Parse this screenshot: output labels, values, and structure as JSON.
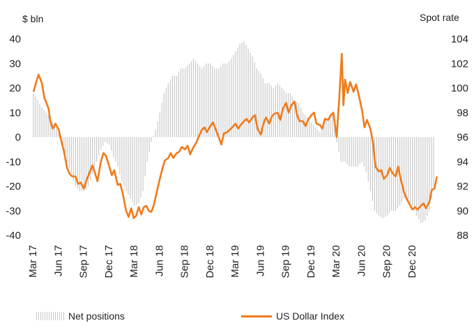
{
  "chart_data": {
    "type": "bar+line",
    "left_axis_label": "$ bln",
    "right_axis_label": "Spot rate",
    "left_ylim": [
      -40,
      40
    ],
    "right_ylim": [
      88,
      104
    ],
    "left_ticks": [
      "40",
      "30",
      "20",
      "10",
      "0",
      "-10",
      "-20",
      "-30",
      "-40"
    ],
    "right_ticks": [
      "104",
      "102",
      "100",
      "98",
      "96",
      "94",
      "92",
      "90",
      "88"
    ],
    "x_start": "2017-03",
    "x_end": "2021-02",
    "x_ticks": [
      {
        "label": "Mar 17",
        "t": 0
      },
      {
        "label": "Jun 17",
        "t": 3
      },
      {
        "label": "Sep 17",
        "t": 6
      },
      {
        "label": "Dec 17",
        "t": 9
      },
      {
        "label": "Mar 18",
        "t": 12
      },
      {
        "label": "Jun 18",
        "t": 15
      },
      {
        "label": "Sep 18",
        "t": 18
      },
      {
        "label": "Dec 18",
        "t": 21
      },
      {
        "label": "Mar 19",
        "t": 24
      },
      {
        "label": "Jun 19",
        "t": 27
      },
      {
        "label": "Sep 19",
        "t": 30
      },
      {
        "label": "Dec 19",
        "t": 33
      },
      {
        "label": "Mar 20",
        "t": 36
      },
      {
        "label": "Jun 20",
        "t": 39
      },
      {
        "label": "Sep 20",
        "t": 42
      },
      {
        "label": "Dec 20",
        "t": 45
      }
    ],
    "series": [
      {
        "name": "Net positions",
        "axis": "left",
        "kind": "bar",
        "color": "#c8c8c8",
        "points": [
          [
            0,
            18
          ],
          [
            0.5,
            15
          ],
          [
            1,
            12
          ],
          [
            1.5,
            10
          ],
          [
            2,
            8
          ],
          [
            2.5,
            5
          ],
          [
            3,
            2
          ],
          [
            3.5,
            -5
          ],
          [
            4,
            -10
          ],
          [
            4.5,
            -15
          ],
          [
            5,
            -20
          ],
          [
            5.5,
            -22
          ],
          [
            6,
            -22
          ],
          [
            6.5,
            -20
          ],
          [
            7,
            -15
          ],
          [
            7.5,
            -10
          ],
          [
            8,
            -5
          ],
          [
            8.5,
            -2
          ],
          [
            9,
            -3
          ],
          [
            9.5,
            -8
          ],
          [
            10,
            -12
          ],
          [
            10.5,
            -18
          ],
          [
            11,
            -22
          ],
          [
            11.5,
            -25
          ],
          [
            12,
            -28
          ],
          [
            12.5,
            -27
          ],
          [
            13,
            -22
          ],
          [
            13.5,
            -10
          ],
          [
            14,
            -2
          ],
          [
            14.5,
            3
          ],
          [
            15,
            10
          ],
          [
            15.5,
            18
          ],
          [
            16,
            22
          ],
          [
            16.5,
            25
          ],
          [
            17,
            25
          ],
          [
            17.5,
            28
          ],
          [
            18,
            28
          ],
          [
            18.5,
            30
          ],
          [
            19,
            32
          ],
          [
            19.5,
            30
          ],
          [
            20,
            28
          ],
          [
            20.5,
            30
          ],
          [
            21,
            30
          ],
          [
            21.5,
            28
          ],
          [
            22,
            28
          ],
          [
            22.5,
            30
          ],
          [
            23,
            30
          ],
          [
            23.5,
            32
          ],
          [
            24,
            35
          ],
          [
            24.5,
            38
          ],
          [
            25,
            39
          ],
          [
            25.5,
            36
          ],
          [
            26,
            33
          ],
          [
            26.5,
            28
          ],
          [
            27,
            26
          ],
          [
            27.5,
            22
          ],
          [
            28,
            22
          ],
          [
            28.5,
            20
          ],
          [
            29,
            22
          ],
          [
            29.5,
            20
          ],
          [
            30,
            18
          ],
          [
            30.5,
            18
          ],
          [
            31,
            15
          ],
          [
            31.5,
            14
          ],
          [
            32,
            10
          ],
          [
            32.5,
            8
          ],
          [
            33,
            6
          ],
          [
            33.5,
            4
          ],
          [
            34,
            2
          ],
          [
            34.5,
            6
          ],
          [
            35,
            8
          ],
          [
            35.5,
            10
          ],
          [
            36,
            -2
          ],
          [
            36.5,
            -10
          ],
          [
            37,
            -10
          ],
          [
            37.5,
            -12
          ],
          [
            38,
            -12
          ],
          [
            38.5,
            -12
          ],
          [
            39,
            -10
          ],
          [
            39.5,
            -14
          ],
          [
            40,
            -22
          ],
          [
            40.5,
            -30
          ],
          [
            41,
            -32
          ],
          [
            41.5,
            -33
          ],
          [
            42,
            -32
          ],
          [
            42.5,
            -30
          ],
          [
            43,
            -30
          ],
          [
            43.5,
            -28
          ],
          [
            44,
            -25
          ],
          [
            44.5,
            -26
          ],
          [
            45,
            -28
          ],
          [
            45.5,
            -32
          ],
          [
            46,
            -35
          ],
          [
            46.5,
            -34
          ],
          [
            47,
            -30
          ],
          [
            47.5,
            -20
          ]
        ]
      },
      {
        "name": "US Dollar Index",
        "axis": "right",
        "kind": "line",
        "color": "#f07a1a",
        "points": [
          [
            0,
            99.7
          ],
          [
            0.3,
            100.4
          ],
          [
            0.6,
            101.1
          ],
          [
            1,
            100.4
          ],
          [
            1.3,
            99.2
          ],
          [
            1.6,
            98.7
          ],
          [
            1.8,
            98.3
          ],
          [
            2,
            97.3
          ],
          [
            2.3,
            96.7
          ],
          [
            2.6,
            97.1
          ],
          [
            3,
            96.6
          ],
          [
            3.3,
            95.7
          ],
          [
            3.6,
            94.9
          ],
          [
            4,
            93.5
          ],
          [
            4.3,
            93.0
          ],
          [
            4.6,
            92.8
          ],
          [
            5,
            92.8
          ],
          [
            5.3,
            92.2
          ],
          [
            5.6,
            92.3
          ],
          [
            6,
            91.8
          ],
          [
            6.3,
            92.5
          ],
          [
            6.6,
            93.0
          ],
          [
            7,
            93.7
          ],
          [
            7.3,
            93.1
          ],
          [
            7.6,
            92.4
          ],
          [
            8,
            94.0
          ],
          [
            8.3,
            94.7
          ],
          [
            8.6,
            94.5
          ],
          [
            9,
            93.6
          ],
          [
            9.3,
            92.9
          ],
          [
            9.6,
            93.3
          ],
          [
            10,
            92.1
          ],
          [
            10.3,
            92.2
          ],
          [
            10.6,
            91.4
          ],
          [
            11,
            90.0
          ],
          [
            11.3,
            89.5
          ],
          [
            11.6,
            90.2
          ],
          [
            11.9,
            89.4
          ],
          [
            12.2,
            89.6
          ],
          [
            12.5,
            90.3
          ],
          [
            12.8,
            89.7
          ],
          [
            13.1,
            90.3
          ],
          [
            13.4,
            90.4
          ],
          [
            13.7,
            90.0
          ],
          [
            14,
            89.9
          ],
          [
            14.3,
            90.5
          ],
          [
            14.6,
            91.4
          ],
          [
            15,
            92.6
          ],
          [
            15.3,
            93.4
          ],
          [
            15.6,
            94.1
          ],
          [
            16,
            94.3
          ],
          [
            16.3,
            94.7
          ],
          [
            16.6,
            94.3
          ],
          [
            17,
            94.7
          ],
          [
            17.3,
            94.8
          ],
          [
            17.6,
            95.2
          ],
          [
            18,
            95.0
          ],
          [
            18.3,
            95.3
          ],
          [
            18.6,
            94.6
          ],
          [
            19,
            95.2
          ],
          [
            19.3,
            95.5
          ],
          [
            19.6,
            96.0
          ],
          [
            20,
            96.6
          ],
          [
            20.3,
            96.8
          ],
          [
            20.6,
            96.4
          ],
          [
            21,
            96.9
          ],
          [
            21.3,
            97.2
          ],
          [
            21.6,
            96.7
          ],
          [
            22,
            96.0
          ],
          [
            22.3,
            95.4
          ],
          [
            22.6,
            96.3
          ],
          [
            23,
            96.4
          ],
          [
            23.3,
            96.6
          ],
          [
            23.6,
            96.8
          ],
          [
            24,
            97.1
          ],
          [
            24.3,
            96.7
          ],
          [
            24.6,
            97.0
          ],
          [
            25,
            97.3
          ],
          [
            25.3,
            97.5
          ],
          [
            25.6,
            97.2
          ],
          [
            26,
            97.6
          ],
          [
            26.3,
            97.8
          ],
          [
            26.6,
            96.7
          ],
          [
            27,
            96.2
          ],
          [
            27.3,
            97.1
          ],
          [
            27.6,
            97.6
          ],
          [
            28,
            97.1
          ],
          [
            28.3,
            97.7
          ],
          [
            28.6,
            97.9
          ],
          [
            29,
            98.0
          ],
          [
            29.3,
            97.4
          ],
          [
            29.6,
            98.3
          ],
          [
            30,
            98.8
          ],
          [
            30.3,
            98.0
          ],
          [
            30.6,
            98.6
          ],
          [
            31,
            98.9
          ],
          [
            31.3,
            97.8
          ],
          [
            31.6,
            97.3
          ],
          [
            32,
            97.3
          ],
          [
            32.3,
            96.9
          ],
          [
            32.6,
            97.4
          ],
          [
            33,
            97.8
          ],
          [
            33.3,
            98.0
          ],
          [
            33.6,
            97.1
          ],
          [
            34,
            97.0
          ],
          [
            34.3,
            96.7
          ],
          [
            34.6,
            97.5
          ],
          [
            35,
            97.4
          ],
          [
            35.3,
            97.8
          ],
          [
            35.6,
            98.0
          ],
          [
            36,
            96.0
          ],
          [
            36.3,
            99.1
          ],
          [
            36.6,
            102.8
          ],
          [
            36.8,
            98.6
          ],
          [
            37,
            100.7
          ],
          [
            37.3,
            99.6
          ],
          [
            37.6,
            100.5
          ],
          [
            38,
            99.7
          ],
          [
            38.3,
            100.3
          ],
          [
            38.6,
            99.5
          ],
          [
            39,
            98.2
          ],
          [
            39.3,
            96.8
          ],
          [
            39.6,
            97.4
          ],
          [
            40,
            96.7
          ],
          [
            40.3,
            95.6
          ],
          [
            40.6,
            93.6
          ],
          [
            41,
            93.2
          ],
          [
            41.3,
            93.3
          ],
          [
            41.6,
            92.6
          ],
          [
            42,
            92.9
          ],
          [
            42.3,
            93.5
          ],
          [
            42.6,
            93.1
          ],
          [
            43,
            92.8
          ],
          [
            43.3,
            93.6
          ],
          [
            43.6,
            92.6
          ],
          [
            44,
            91.5
          ],
          [
            44.3,
            91.0
          ],
          [
            44.6,
            90.6
          ],
          [
            45,
            90.1
          ],
          [
            45.3,
            90.3
          ],
          [
            45.6,
            90.1
          ],
          [
            46,
            90.4
          ],
          [
            46.3,
            90.6
          ],
          [
            46.6,
            90.2
          ],
          [
            47,
            90.7
          ],
          [
            47.3,
            91.7
          ],
          [
            47.6,
            91.8
          ],
          [
            47.9,
            92.8
          ]
        ]
      }
    ]
  },
  "legend": {
    "bars_label": "Net positions",
    "line_label": "US Dollar Index"
  }
}
